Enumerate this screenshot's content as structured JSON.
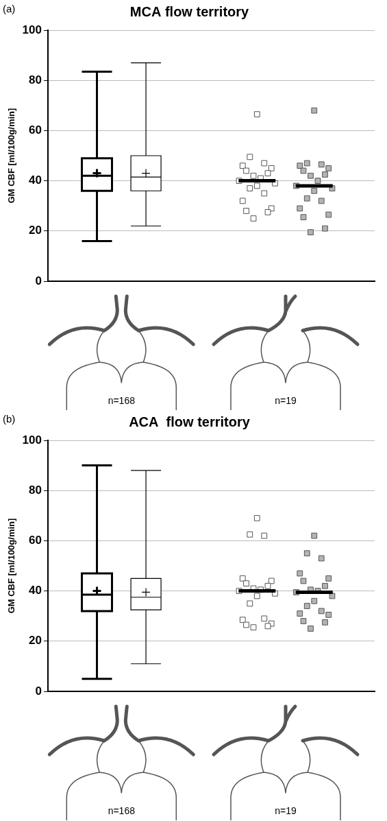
{
  "chart_data": [
    {
      "type": "box_scatter",
      "panel_label": "(a)",
      "title": "MCA flow territory",
      "y_label": "GM CBF [ml/100g/min]",
      "ylim": [
        0,
        100
      ],
      "yticks": [
        0,
        20,
        40,
        60,
        80,
        100
      ],
      "grid": true,
      "tick_labels": "y",
      "groups": [
        {
          "label": "n=168"
        },
        {
          "label": "n=19"
        }
      ],
      "series": [
        {
          "type": "box",
          "group": 0,
          "color": "#000000",
          "line_style": "bold",
          "min": 16,
          "q1": 36,
          "median": 42,
          "q3": 49,
          "max": 83.5,
          "mean": 43
        },
        {
          "type": "box",
          "group": 0,
          "color": "#000000",
          "line_style": "solid",
          "min": 22,
          "q1": 36,
          "median": 41.5,
          "q3": 50,
          "max": 87,
          "mean": 43
        },
        {
          "type": "scatter",
          "group": 1,
          "color": "#ffffff",
          "marker": "square",
          "median": 40,
          "values": [
            66.5,
            49.5,
            47,
            46,
            45,
            44,
            43,
            42,
            41,
            40,
            39,
            38,
            37,
            35,
            32,
            29,
            28,
            27.5,
            25
          ]
        },
        {
          "type": "scatter",
          "group": 1,
          "color": "#b3b3b3",
          "marker": "square",
          "median": 38,
          "values": [
            68,
            47,
            46.5,
            46,
            45,
            44,
            42.5,
            42,
            40,
            38,
            37,
            36,
            33,
            32,
            29,
            26.5,
            25.5,
            21,
            19.5
          ]
        }
      ]
    },
    {
      "type": "box_scatter",
      "panel_label": "(b)",
      "title": "ACA  flow territory",
      "y_label": "GM CBF [ml/100g/min]",
      "ylim": [
        0,
        100
      ],
      "yticks": [
        0,
        20,
        40,
        60,
        80,
        100
      ],
      "grid": true,
      "tick_labels": "y",
      "groups": [
        {
          "label": "n=168"
        },
        {
          "label": "n=19"
        }
      ],
      "series": [
        {
          "type": "box",
          "group": 0,
          "color": "#000000",
          "line_style": "bold",
          "min": 5,
          "q1": 32,
          "median": 38.5,
          "q3": 47,
          "max": 90,
          "mean": 40
        },
        {
          "type": "box",
          "group": 0,
          "color": "#000000",
          "line_style": "solid",
          "min": 11,
          "q1": 32.5,
          "median": 37.5,
          "q3": 45,
          "max": 88,
          "mean": 39.5
        },
        {
          "type": "scatter",
          "group": 1,
          "color": "#ffffff",
          "marker": "square",
          "median": 40,
          "values": [
            69,
            62.5,
            62,
            45,
            44,
            43,
            42,
            41,
            40.5,
            40,
            39,
            38,
            35,
            29,
            28.5,
            27,
            26.5,
            26,
            25.5
          ]
        },
        {
          "type": "scatter",
          "group": 1,
          "color": "#b3b3b3",
          "marker": "square",
          "median": 39.5,
          "values": [
            62,
            55,
            53,
            47,
            45,
            44,
            42,
            40.5,
            40,
            39.5,
            38,
            36,
            34,
            32,
            31,
            30.5,
            28,
            27.5,
            25
          ]
        }
      ]
    }
  ]
}
